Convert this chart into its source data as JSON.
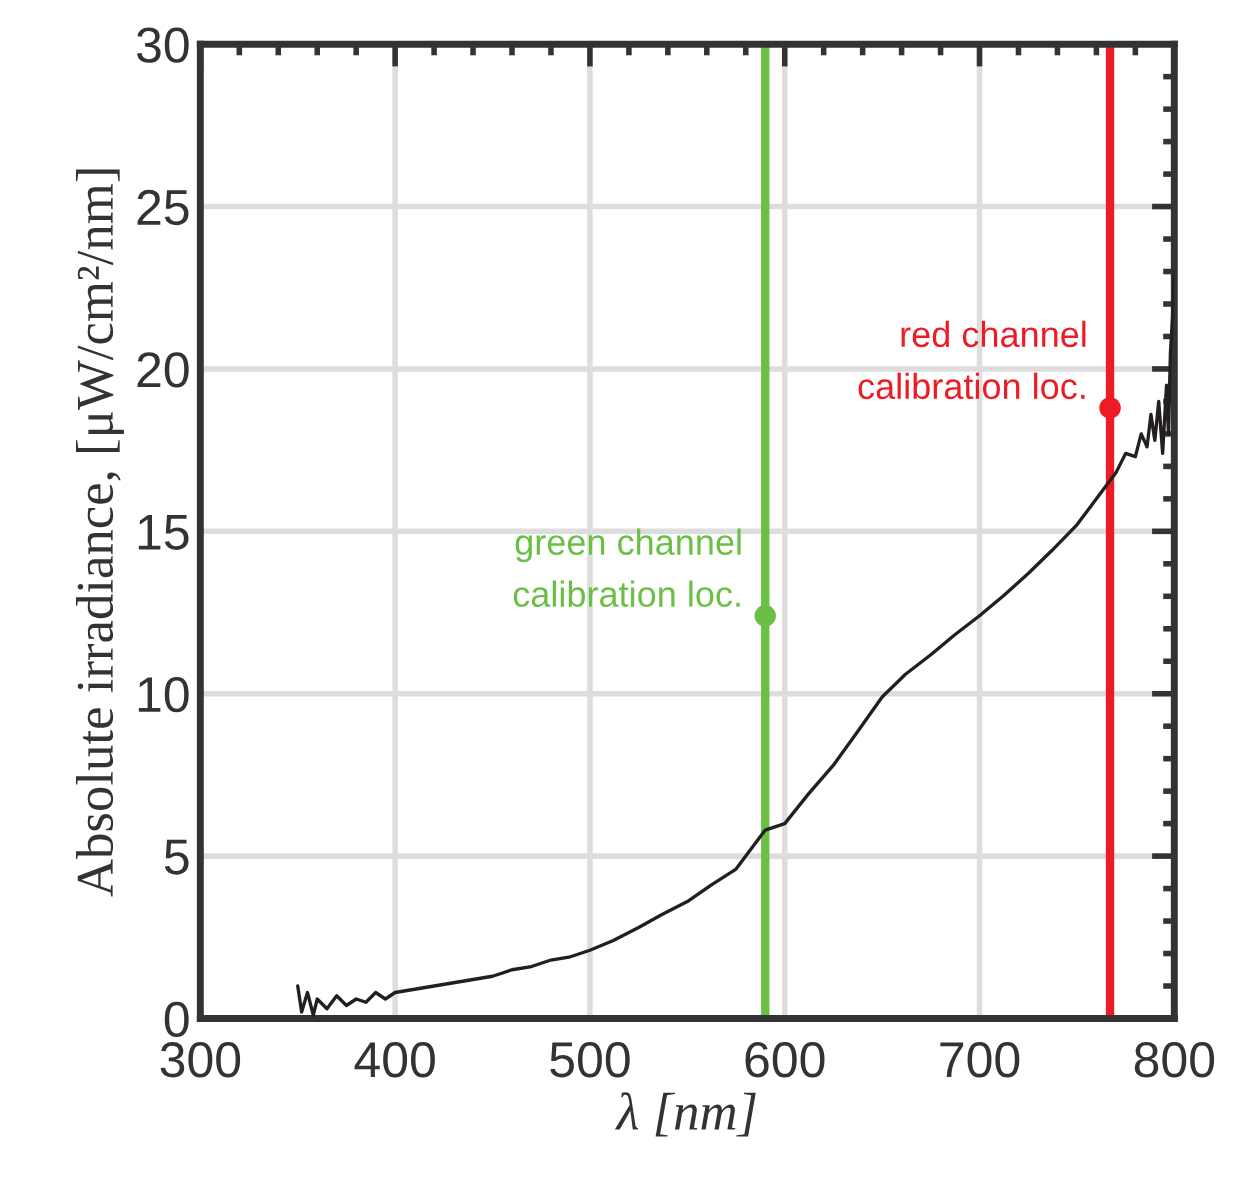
{
  "chart_data": {
    "type": "line",
    "xlabel": "λ [nm]",
    "ylabel": "Absolute irradiance, [μW/cm²/nm]",
    "xlim": [
      300,
      800
    ],
    "xticks": [
      300,
      400,
      500,
      600,
      700,
      800
    ],
    "ylim": [
      0,
      30
    ],
    "yticks": [
      0,
      5,
      10,
      15,
      20,
      25,
      30
    ],
    "grid": true,
    "series": [
      {
        "color": "#231f20",
        "x": [
          350,
          352,
          355,
          358,
          360,
          365,
          370,
          375,
          380,
          385,
          390,
          395,
          400,
          410,
          420,
          430,
          440,
          450,
          460,
          470,
          480,
          490,
          500,
          512,
          525,
          537,
          550,
          562,
          575,
          590,
          600,
          612,
          625,
          637,
          650,
          662,
          675,
          687,
          700,
          712,
          725,
          737,
          750,
          760,
          770,
          775,
          780,
          783,
          786,
          788,
          790,
          792,
          794,
          796,
          797,
          798,
          799,
          800
        ],
        "values": [
          1.0,
          0.2,
          0.8,
          0.1,
          0.6,
          0.3,
          0.7,
          0.4,
          0.6,
          0.5,
          0.8,
          0.6,
          0.8,
          0.9,
          1.0,
          1.1,
          1.2,
          1.3,
          1.5,
          1.6,
          1.8,
          1.9,
          2.1,
          2.4,
          2.8,
          3.2,
          3.6,
          4.1,
          4.6,
          5.8,
          6.0,
          6.9,
          7.8,
          8.8,
          9.9,
          10.6,
          11.2,
          11.8,
          12.4,
          13.0,
          13.7,
          14.4,
          15.2,
          16.0,
          16.8,
          17.4,
          17.3,
          18.0,
          17.6,
          18.6,
          17.8,
          19.0,
          17.4,
          19.5,
          18.0,
          20.5,
          21.5,
          23.0
        ]
      },
      {
        "type": "scatter",
        "marker": "circle",
        "color": "#6abf45",
        "x": [
          590
        ],
        "values": [
          12.4
        ]
      },
      {
        "type": "scatter",
        "marker": "circle",
        "color": "#ed1c24",
        "x": [
          767
        ],
        "values": [
          18.8
        ]
      }
    ],
    "ref_lines": [
      {
        "axis": "x",
        "value": 590,
        "color": "#6abf45"
      },
      {
        "axis": "x",
        "value": 767,
        "color": "#ed1c24"
      }
    ],
    "annotations": [
      {
        "text": "green channel\ncalibration loc.",
        "x": 590,
        "y": 12.4
      },
      {
        "text": "red channel\ncalibration loc.",
        "x": 767,
        "y": 18.8
      }
    ],
    "line_style": "solid",
    "legend": false
  }
}
